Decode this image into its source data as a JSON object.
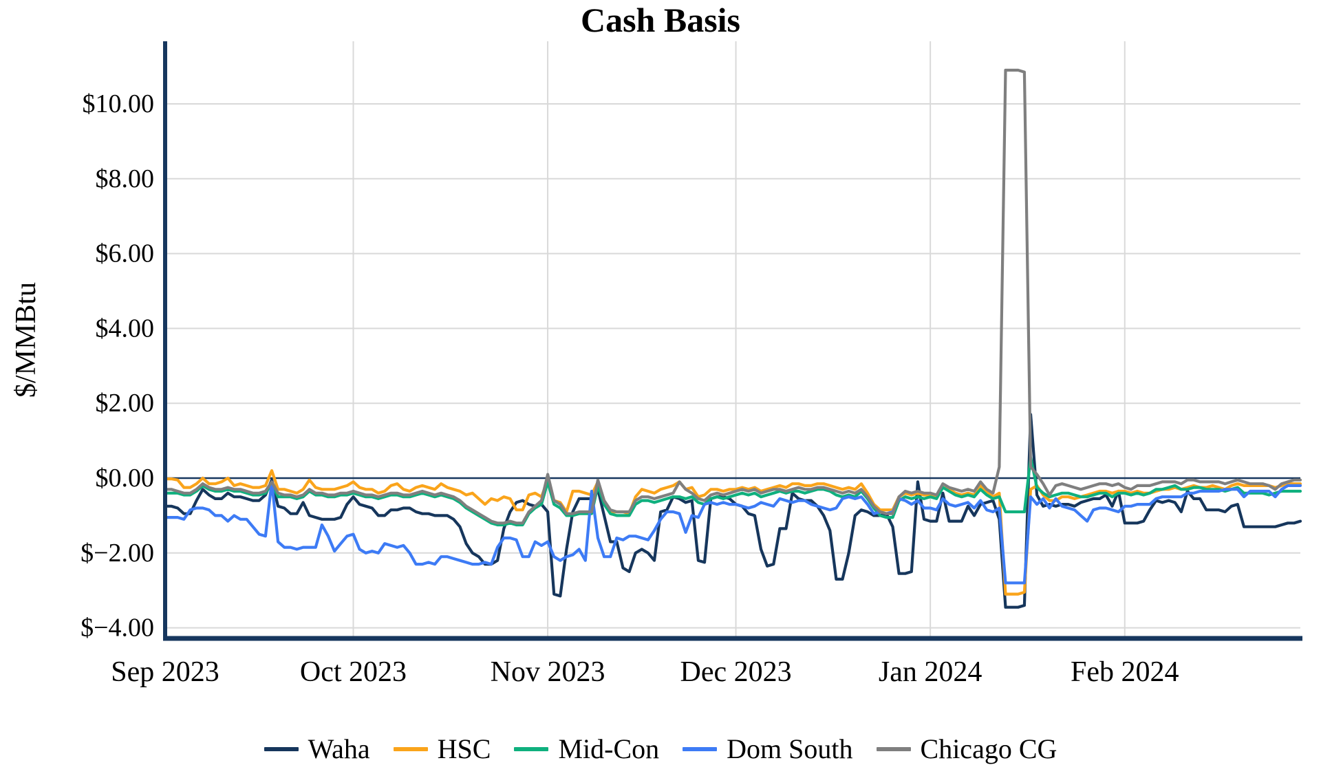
{
  "chart": {
    "title": "Cash Basis",
    "y_axis_label": "$/MMBtu"
  },
  "chart_data": {
    "type": "line",
    "title": "Cash Basis",
    "ylabel": "$/MMBtu",
    "grid": true,
    "zero_line": true,
    "legend_position": "bottom",
    "colors": {
      "axis": "#17375E",
      "gridline": "#D9D9D9",
      "zero_line": "#17375E",
      "background": "#FFFFFF"
    },
    "x_axis": {
      "tick_labels": [
        "Sep 2023",
        "Oct 2023",
        "Nov 2023",
        "Dec 2023",
        "Jan 2024",
        "Feb 2024"
      ],
      "month_day_counts": [
        30,
        31,
        30,
        31,
        31,
        29
      ],
      "granularity": "daily"
    },
    "y_axis": {
      "unit": "$/MMBtu",
      "ticks": [
        {
          "value": 10,
          "label": "$10.00"
        },
        {
          "value": 8,
          "label": "$8.00"
        },
        {
          "value": 6,
          "label": "$6.00"
        },
        {
          "value": 4,
          "label": "$4.00"
        },
        {
          "value": 2,
          "label": "$2.00"
        },
        {
          "value": 0,
          "label": "$0.00"
        },
        {
          "value": -2,
          "label": "$−2.00"
        },
        {
          "value": -4,
          "label": "$−4.00"
        }
      ],
      "range_shown": [
        -4.3,
        11.7
      ]
    },
    "series": [
      {
        "name": "Waha",
        "color": "#16365C",
        "values": [
          -0.75,
          -0.75,
          -0.8,
          -0.95,
          -0.95,
          -0.6,
          -0.3,
          -0.45,
          -0.55,
          -0.55,
          -0.4,
          -0.5,
          -0.5,
          -0.55,
          -0.6,
          -0.6,
          -0.45,
          -0.05,
          -0.75,
          -0.8,
          -0.95,
          -0.95,
          -0.65,
          -1.0,
          -1.05,
          -1.1,
          -1.1,
          -1.1,
          -1.05,
          -0.7,
          -0.5,
          -0.7,
          -0.75,
          -0.8,
          -1.0,
          -1.0,
          -0.85,
          -0.85,
          -0.8,
          -0.8,
          -0.9,
          -0.95,
          -0.95,
          -1.0,
          -1.0,
          -1.0,
          -1.1,
          -1.3,
          -1.75,
          -2.0,
          -2.1,
          -2.3,
          -2.3,
          -2.2,
          -1.35,
          -0.9,
          -0.65,
          -0.6,
          -0.7,
          -0.75,
          -0.7,
          -0.9,
          -3.1,
          -3.15,
          -1.9,
          -0.9,
          -0.55,
          -0.55,
          -0.55,
          -0.3,
          -1.0,
          -1.7,
          -1.7,
          -2.4,
          -2.5,
          -2.0,
          -1.9,
          -2.0,
          -2.2,
          -0.9,
          -0.85,
          -0.5,
          -0.55,
          -0.65,
          -0.6,
          -2.2,
          -2.25,
          -0.55,
          -0.5,
          -0.5,
          -0.55,
          -0.7,
          -0.75,
          -0.95,
          -1.0,
          -1.9,
          -2.35,
          -2.3,
          -1.35,
          -1.35,
          -0.4,
          -0.55,
          -0.6,
          -0.6,
          -0.75,
          -1.0,
          -1.4,
          -2.7,
          -2.7,
          -2.0,
          -1.0,
          -0.85,
          -0.9,
          -1.0,
          -1.0,
          -0.95,
          -1.3,
          -2.55,
          -2.55,
          -2.5,
          -0.1,
          -1.1,
          -1.15,
          -1.15,
          -0.4,
          -1.15,
          -1.15,
          -1.15,
          -0.75,
          -1.0,
          -0.7,
          -0.65,
          -0.6,
          -1.1,
          -3.45,
          -3.45,
          -3.45,
          -3.4,
          1.7,
          -0.45,
          -0.75,
          -0.7,
          -0.75,
          -0.7,
          -0.7,
          -0.75,
          -0.65,
          -0.6,
          -0.55,
          -0.55,
          -0.45,
          -0.75,
          -0.35,
          -1.2,
          -1.2,
          -1.2,
          -1.15,
          -0.85,
          -0.6,
          -0.65,
          -0.6,
          -0.65,
          -0.9,
          -0.35,
          -0.55,
          -0.55,
          -0.85,
          -0.85,
          -0.85,
          -0.9,
          -0.75,
          -0.7,
          -1.3,
          -1.3,
          -1.3,
          -1.3,
          -1.3,
          -1.3,
          -1.25,
          -1.2,
          -1.2,
          -1.15
        ]
      },
      {
        "name": "HSC",
        "color": "#FAA41B",
        "values": [
          -0.02,
          -0.02,
          -0.05,
          -0.25,
          -0.25,
          -0.15,
          0,
          -0.15,
          -0.15,
          -0.1,
          0,
          -0.2,
          -0.15,
          -0.2,
          -0.25,
          -0.25,
          -0.2,
          0.2,
          -0.3,
          -0.3,
          -0.35,
          -0.4,
          -0.3,
          -0.05,
          -0.25,
          -0.3,
          -0.3,
          -0.3,
          -0.25,
          -0.2,
          -0.1,
          -0.25,
          -0.3,
          -0.3,
          -0.4,
          -0.35,
          -0.2,
          -0.15,
          -0.3,
          -0.35,
          -0.25,
          -0.2,
          -0.25,
          -0.3,
          -0.15,
          -0.25,
          -0.3,
          -0.35,
          -0.45,
          -0.4,
          -0.55,
          -0.7,
          -0.55,
          -0.6,
          -0.5,
          -0.55,
          -0.85,
          -0.85,
          -0.45,
          -0.4,
          -0.5,
          -0.05,
          -0.6,
          -0.65,
          -0.9,
          -0.35,
          -0.35,
          -0.4,
          -0.45,
          -0.1,
          -0.6,
          -0.9,
          -0.9,
          -0.9,
          -0.95,
          -0.5,
          -0.3,
          -0.35,
          -0.4,
          -0.3,
          -0.25,
          -0.2,
          -0.1,
          -0.3,
          -0.25,
          -0.5,
          -0.45,
          -0.3,
          -0.3,
          -0.35,
          -0.3,
          -0.3,
          -0.25,
          -0.3,
          -0.25,
          -0.35,
          -0.3,
          -0.25,
          -0.2,
          -0.25,
          -0.15,
          -0.15,
          -0.2,
          -0.2,
          -0.15,
          -0.15,
          -0.2,
          -0.25,
          -0.3,
          -0.25,
          -0.3,
          -0.15,
          -0.4,
          -0.7,
          -0.85,
          -0.85,
          -0.85,
          -0.5,
          -0.4,
          -0.45,
          -0.4,
          -0.45,
          -0.45,
          -0.5,
          -0.25,
          -0.3,
          -0.4,
          -0.45,
          -0.4,
          -0.45,
          -0.2,
          -0.35,
          -0.5,
          -0.4,
          -3.1,
          -3.1,
          -3.1,
          -3.05,
          -0.3,
          -0.2,
          -0.45,
          -0.6,
          -0.6,
          -0.5,
          -0.5,
          -0.55,
          -0.5,
          -0.45,
          -0.4,
          -0.35,
          -0.35,
          -0.4,
          -0.35,
          -0.35,
          -0.4,
          -0.35,
          -0.4,
          -0.4,
          -0.35,
          -0.3,
          -0.3,
          -0.25,
          -0.3,
          -0.25,
          -0.2,
          -0.25,
          -0.25,
          -0.2,
          -0.25,
          -0.3,
          -0.2,
          -0.15,
          -0.2,
          -0.2,
          -0.2,
          -0.2,
          -0.2,
          -0.25,
          -0.2,
          -0.15,
          -0.15,
          -0.15
        ]
      },
      {
        "name": "Mid-Con",
        "color": "#0FB07E",
        "values": [
          -0.4,
          -0.4,
          -0.4,
          -0.45,
          -0.45,
          -0.35,
          -0.2,
          -0.3,
          -0.35,
          -0.35,
          -0.3,
          -0.35,
          -0.35,
          -0.4,
          -0.45,
          -0.45,
          -0.4,
          -0.15,
          -0.5,
          -0.5,
          -0.5,
          -0.55,
          -0.5,
          -0.35,
          -0.45,
          -0.45,
          -0.5,
          -0.5,
          -0.45,
          -0.45,
          -0.4,
          -0.45,
          -0.5,
          -0.5,
          -0.55,
          -0.5,
          -0.45,
          -0.45,
          -0.5,
          -0.5,
          -0.45,
          -0.4,
          -0.45,
          -0.5,
          -0.45,
          -0.5,
          -0.55,
          -0.65,
          -0.8,
          -0.9,
          -1.0,
          -1.1,
          -1.2,
          -1.25,
          -1.25,
          -1.2,
          -1.25,
          -1.25,
          -0.95,
          -0.8,
          -0.7,
          -0.1,
          -0.7,
          -0.8,
          -1.0,
          -1.0,
          -0.95,
          -0.95,
          -0.95,
          -0.2,
          -0.7,
          -0.95,
          -1.0,
          -1.0,
          -1.0,
          -0.7,
          -0.6,
          -0.6,
          -0.65,
          -0.6,
          -0.55,
          -0.5,
          -0.5,
          -0.55,
          -0.5,
          -0.65,
          -0.7,
          -0.55,
          -0.5,
          -0.55,
          -0.5,
          -0.45,
          -0.4,
          -0.45,
          -0.4,
          -0.5,
          -0.45,
          -0.4,
          -0.35,
          -0.4,
          -0.35,
          -0.35,
          -0.4,
          -0.35,
          -0.3,
          -0.3,
          -0.35,
          -0.45,
          -0.5,
          -0.45,
          -0.5,
          -0.35,
          -0.55,
          -0.8,
          -1.0,
          -1.05,
          -1.05,
          -0.6,
          -0.5,
          -0.55,
          -0.5,
          -0.55,
          -0.5,
          -0.55,
          -0.25,
          -0.35,
          -0.45,
          -0.5,
          -0.45,
          -0.5,
          -0.3,
          -0.45,
          -0.55,
          -0.5,
          -0.9,
          -0.9,
          -0.9,
          -0.9,
          0.55,
          -0.25,
          -0.4,
          -0.5,
          -0.45,
          -0.4,
          -0.4,
          -0.45,
          -0.5,
          -0.5,
          -0.45,
          -0.4,
          -0.4,
          -0.5,
          -0.4,
          -0.4,
          -0.45,
          -0.4,
          -0.45,
          -0.4,
          -0.3,
          -0.3,
          -0.25,
          -0.2,
          -0.3,
          -0.3,
          -0.25,
          -0.25,
          -0.3,
          -0.3,
          -0.3,
          -0.35,
          -0.3,
          -0.25,
          -0.4,
          -0.4,
          -0.4,
          -0.4,
          -0.45,
          -0.4,
          -0.35,
          -0.35,
          -0.35,
          -0.35
        ]
      },
      {
        "name": "Dom South",
        "color": "#3D7BF5",
        "values": [
          -1.05,
          -1.05,
          -1.05,
          -1.1,
          -0.85,
          -0.8,
          -0.8,
          -0.85,
          -1.0,
          -1.0,
          -1.15,
          -1.0,
          -1.1,
          -1.1,
          -1.3,
          -1.5,
          -1.55,
          -0.1,
          -1.7,
          -1.85,
          -1.85,
          -1.9,
          -1.85,
          -1.85,
          -1.85,
          -1.25,
          -1.55,
          -1.95,
          -1.75,
          -1.55,
          -1.5,
          -1.9,
          -2.0,
          -1.95,
          -2.0,
          -1.75,
          -1.8,
          -1.85,
          -1.8,
          -2.0,
          -2.3,
          -2.3,
          -2.25,
          -2.3,
          -2.1,
          -2.1,
          -2.15,
          -2.2,
          -2.25,
          -2.3,
          -2.3,
          -2.25,
          -2.3,
          -1.85,
          -1.6,
          -1.6,
          -1.65,
          -2.1,
          -2.1,
          -1.7,
          -1.8,
          -1.7,
          -2.1,
          -2.2,
          -2.1,
          -2.05,
          -1.9,
          -2.2,
          -0.35,
          -1.6,
          -2.1,
          -2.1,
          -1.6,
          -1.65,
          -1.55,
          -1.55,
          -1.6,
          -1.65,
          -1.4,
          -1.1,
          -0.9,
          -0.9,
          -0.95,
          -1.45,
          -1.0,
          -1.05,
          -0.7,
          -0.65,
          -0.7,
          -0.65,
          -0.7,
          -0.7,
          -0.75,
          -0.8,
          -0.75,
          -0.65,
          -0.7,
          -0.75,
          -0.55,
          -0.6,
          -0.65,
          -0.6,
          -0.6,
          -0.7,
          -0.75,
          -0.8,
          -0.85,
          -0.8,
          -0.55,
          -0.5,
          -0.55,
          -0.5,
          -0.7,
          -0.95,
          -0.9,
          -0.95,
          -0.9,
          -0.55,
          -0.6,
          -0.7,
          -0.6,
          -0.8,
          -0.8,
          -0.85,
          -0.55,
          -0.7,
          -0.75,
          -0.7,
          -0.65,
          -0.8,
          -0.6,
          -0.85,
          -0.9,
          -0.8,
          -2.8,
          -2.8,
          -2.8,
          -2.8,
          -0.5,
          -0.7,
          -0.55,
          -0.8,
          -0.55,
          -0.75,
          -0.8,
          -0.85,
          -1.0,
          -1.15,
          -0.85,
          -0.8,
          -0.8,
          -0.85,
          -0.9,
          -0.75,
          -0.75,
          -0.7,
          -0.7,
          -0.7,
          -0.55,
          -0.5,
          -0.5,
          -0.5,
          -0.5,
          -0.4,
          -0.4,
          -0.35,
          -0.35,
          -0.35,
          -0.35,
          -0.3,
          -0.3,
          -0.3,
          -0.5,
          -0.35,
          -0.35,
          -0.35,
          -0.35,
          -0.5,
          -0.3,
          -0.2,
          -0.2,
          -0.2
        ]
      },
      {
        "name": "Chicago CG",
        "color": "#7F7F7F",
        "values": [
          -0.3,
          -0.3,
          -0.35,
          -0.4,
          -0.4,
          -0.3,
          -0.15,
          -0.25,
          -0.3,
          -0.3,
          -0.25,
          -0.3,
          -0.3,
          -0.35,
          -0.4,
          -0.4,
          -0.35,
          -0.1,
          -0.4,
          -0.45,
          -0.45,
          -0.5,
          -0.45,
          -0.3,
          -0.4,
          -0.4,
          -0.45,
          -0.45,
          -0.4,
          -0.4,
          -0.35,
          -0.4,
          -0.45,
          -0.45,
          -0.5,
          -0.45,
          -0.4,
          -0.4,
          -0.45,
          -0.45,
          -0.4,
          -0.35,
          -0.4,
          -0.45,
          -0.4,
          -0.45,
          -0.5,
          -0.6,
          -0.75,
          -0.85,
          -0.95,
          -1.05,
          -1.15,
          -1.2,
          -1.2,
          -1.15,
          -1.2,
          -1.2,
          -0.9,
          -0.75,
          -0.6,
          0.1,
          -0.6,
          -0.7,
          -0.95,
          -0.95,
          -0.9,
          -0.9,
          -0.9,
          -0.05,
          -0.6,
          -0.85,
          -0.9,
          -0.9,
          -0.9,
          -0.6,
          -0.5,
          -0.5,
          -0.55,
          -0.5,
          -0.45,
          -0.4,
          -0.1,
          -0.3,
          -0.4,
          -0.55,
          -0.6,
          -0.45,
          -0.4,
          -0.45,
          -0.4,
          -0.35,
          -0.3,
          -0.35,
          -0.3,
          -0.4,
          -0.35,
          -0.3,
          -0.3,
          -0.35,
          -0.3,
          -0.25,
          -0.3,
          -0.3,
          -0.25,
          -0.25,
          -0.3,
          -0.35,
          -0.4,
          -0.35,
          -0.4,
          -0.3,
          -0.5,
          -0.75,
          -0.9,
          -0.95,
          -0.95,
          -0.5,
          -0.35,
          -0.4,
          -0.35,
          -0.4,
          -0.4,
          -0.45,
          -0.15,
          -0.25,
          -0.3,
          -0.35,
          -0.3,
          -0.35,
          -0.1,
          -0.3,
          -0.4,
          0.3,
          10.9,
          10.9,
          10.9,
          10.85,
          0.3,
          0.1,
          -0.15,
          -0.45,
          -0.2,
          -0.15,
          -0.2,
          -0.25,
          -0.3,
          -0.25,
          -0.2,
          -0.15,
          -0.15,
          -0.2,
          -0.15,
          -0.25,
          -0.3,
          -0.2,
          -0.2,
          -0.2,
          -0.15,
          -0.1,
          -0.1,
          -0.1,
          -0.15,
          -0.05,
          -0.05,
          -0.1,
          -0.1,
          -0.1,
          -0.1,
          -0.15,
          -0.1,
          -0.05,
          -0.1,
          -0.15,
          -0.15,
          -0.15,
          -0.2,
          -0.3,
          -0.15,
          -0.1,
          -0.05,
          -0.05
        ]
      }
    ]
  }
}
